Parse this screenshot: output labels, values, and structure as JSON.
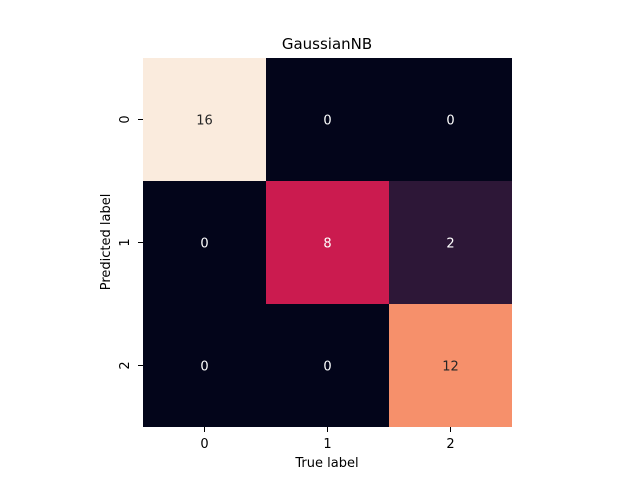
{
  "chart_data": {
    "type": "heatmap",
    "title": "GaussianNB",
    "xlabel": "True label",
    "ylabel": "Predicted label",
    "x_categories": [
      "0",
      "1",
      "2"
    ],
    "y_categories": [
      "0",
      "1",
      "2"
    ],
    "values": [
      [
        16,
        0,
        0
      ],
      [
        0,
        8,
        2
      ],
      [
        0,
        0,
        12
      ]
    ],
    "value_range": [
      0,
      16
    ],
    "colorbar": false,
    "colormap": "rocket",
    "colors": {
      "16": "#faebdd",
      "12": "#f6906b",
      "8": "#cb1b4f",
      "2": "#2d1737",
      "0": "#03051a",
      "text_on_dark": "#ffffff",
      "text_on_light": "#262626"
    }
  }
}
